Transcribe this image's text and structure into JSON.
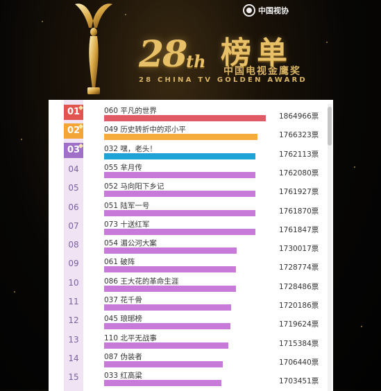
{
  "header": {
    "association": "中国视协",
    "edition_number": "28",
    "edition_suffix": "th",
    "title": "榜单",
    "subtitle_cn": "中国电视金鹰奖",
    "subtitle_en": "28 CHINA TV GOLDEN AWARD"
  },
  "colors": {
    "bar_first": "#e05a66",
    "bar_second": "#f5ac3c",
    "bar_third": "#1fa3d6",
    "bar_default": "#c87ad8",
    "rank_first": "#e2544f",
    "rank_second": "#f3a535",
    "rank_third": "#a070c8"
  },
  "vote_unit": "票",
  "max_votes": 1864966,
  "rankings": [
    {
      "rank": "01",
      "entry": "060 平凡的世界",
      "votes": 1864966
    },
    {
      "rank": "02",
      "entry": "049 历史转折中的邓小平",
      "votes": 1766323
    },
    {
      "rank": "03",
      "entry": "032 嘿，老头！",
      "votes": 1762113
    },
    {
      "rank": "04",
      "entry": "055 芈月传",
      "votes": 1762080
    },
    {
      "rank": "05",
      "entry": "052 马向阳下乡记",
      "votes": 1761927
    },
    {
      "rank": "06",
      "entry": "051 陆军一号",
      "votes": 1761870
    },
    {
      "rank": "07",
      "entry": "073 十送红军",
      "votes": 1761847
    },
    {
      "rank": "08",
      "entry": "054 湄公河大案",
      "votes": 1730017
    },
    {
      "rank": "09",
      "entry": "061 破阵",
      "votes": 1728774
    },
    {
      "rank": "10",
      "entry": "086 王大花的革命生涯",
      "votes": 1728486
    },
    {
      "rank": "11",
      "entry": "037 花千骨",
      "votes": 1720186
    },
    {
      "rank": "12",
      "entry": "045 琅琊榜",
      "votes": 1719624
    },
    {
      "rank": "13",
      "entry": "110 北平无战事",
      "votes": 1715384
    },
    {
      "rank": "14",
      "entry": "087 伪装者",
      "votes": 1706440
    },
    {
      "rank": "15",
      "entry": "033 红高粱",
      "votes": 1703451
    }
  ]
}
